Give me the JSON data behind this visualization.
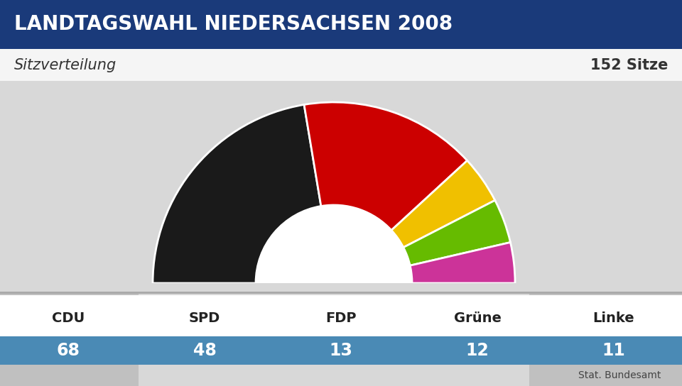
{
  "title": "LANDTAGSWAHL NIEDERSACHSEN 2008",
  "subtitle_left": "Sitzverteilung",
  "subtitle_right": "152 Sitze",
  "total_seats": 152,
  "parties": [
    "CDU",
    "SPD",
    "FDP",
    "Grüne",
    "Linke"
  ],
  "seats": [
    68,
    48,
    13,
    12,
    11
  ],
  "colors": [
    "#1a1a1a",
    "#cc0000",
    "#f0c000",
    "#66bb00",
    "#cc3399"
  ],
  "source": "Stat. Bundesamt",
  "title_bg": "#1a3a7a",
  "title_text_color": "#ffffff",
  "subtitle_bg": "#f0f0f0",
  "bottom_bar_bg": "#4a8ab5",
  "bottom_bar_text": "#ffffff",
  "bg_color": "#c8c8c8",
  "chart_bg": "#e8e8e8",
  "white": "#ffffff"
}
